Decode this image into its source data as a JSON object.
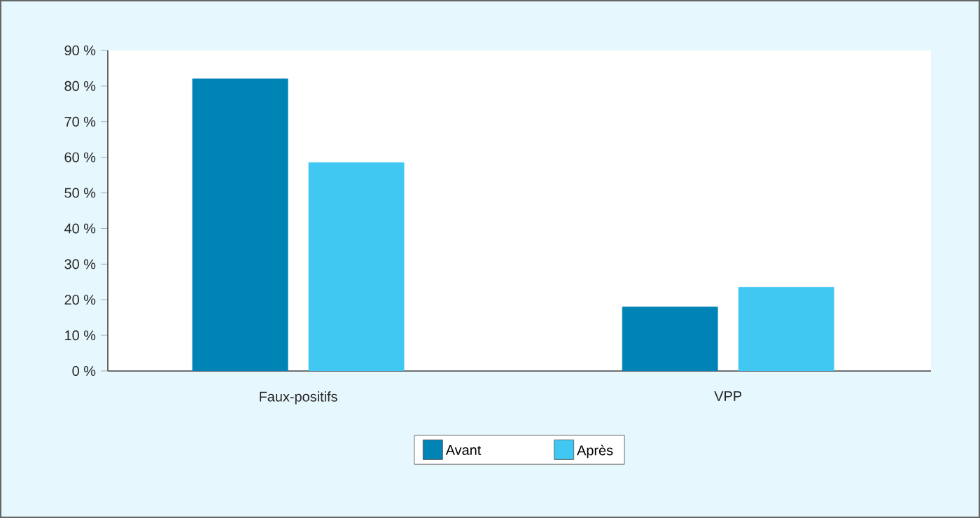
{
  "chart_data": {
    "type": "bar",
    "categories": [
      "Faux-positifs",
      "VPP"
    ],
    "series": [
      {
        "name": "Avant",
        "color": "#0083b5",
        "values": [
          82,
          18
        ]
      },
      {
        "name": "Après",
        "color": "#40c8f2",
        "values": [
          58.5,
          23.5
        ]
      }
    ],
    "ylim": [
      0,
      90
    ],
    "yticks": [
      {
        "value": 0,
        "label": "0 %"
      },
      {
        "value": 10,
        "label": "10 %"
      },
      {
        "value": 20,
        "label": "20 %"
      },
      {
        "value": 30,
        "label": "30 %"
      },
      {
        "value": 40,
        "label": "40 %"
      },
      {
        "value": 50,
        "label": "50 %"
      },
      {
        "value": 60,
        "label": "60 %"
      },
      {
        "value": 70,
        "label": "70 %"
      },
      {
        "value": 80,
        "label": "80 %"
      },
      {
        "value": 90,
        "label": "90 %"
      }
    ],
    "grid": false,
    "legend": "bottom"
  }
}
